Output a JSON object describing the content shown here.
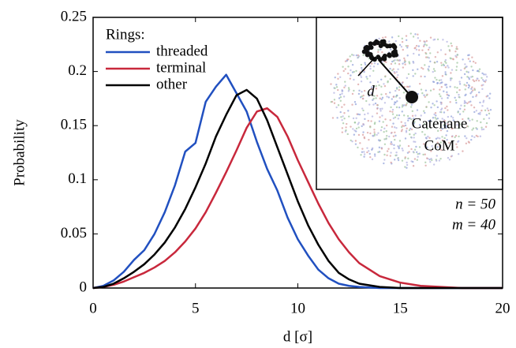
{
  "chart_data": {
    "type": "line",
    "x": [
      0,
      0.5,
      1,
      1.5,
      2,
      2.5,
      3,
      3.5,
      4,
      4.5,
      5,
      5.5,
      6,
      6.5,
      7,
      7.5,
      8,
      8.5,
      9,
      9.5,
      10,
      10.5,
      11,
      11.5,
      12,
      12.5,
      13,
      14,
      15,
      16,
      17,
      18,
      19,
      20
    ],
    "series": [
      {
        "name": "threaded",
        "color": "#2150c0",
        "values": [
          0,
          0.002,
          0.007,
          0.015,
          0.026,
          0.035,
          0.05,
          0.07,
          0.095,
          0.126,
          0.134,
          0.172,
          0.186,
          0.197,
          0.18,
          0.163,
          0.135,
          0.11,
          0.09,
          0.065,
          0.045,
          0.03,
          0.017,
          0.009,
          0.004,
          0.002,
          0.001,
          0,
          0,
          0,
          0,
          0,
          0,
          0
        ]
      },
      {
        "name": "terminal",
        "color": "#c8283c",
        "values": [
          0,
          0.001,
          0.003,
          0.006,
          0.01,
          0.014,
          0.019,
          0.025,
          0.033,
          0.043,
          0.055,
          0.07,
          0.088,
          0.107,
          0.127,
          0.148,
          0.163,
          0.166,
          0.158,
          0.14,
          0.118,
          0.098,
          0.078,
          0.06,
          0.045,
          0.033,
          0.023,
          0.011,
          0.005,
          0.002,
          0.001,
          0,
          0,
          0
        ]
      },
      {
        "name": "other",
        "color": "#000000",
        "values": [
          0,
          0.001,
          0.004,
          0.009,
          0.015,
          0.022,
          0.031,
          0.042,
          0.056,
          0.073,
          0.093,
          0.115,
          0.14,
          0.16,
          0.178,
          0.183,
          0.175,
          0.155,
          0.13,
          0.105,
          0.08,
          0.058,
          0.04,
          0.025,
          0.014,
          0.008,
          0.004,
          0.001,
          0,
          0,
          0,
          0,
          0,
          0
        ]
      }
    ],
    "legend_title": "Rings:",
    "x_label": "d [σ]",
    "y_label": "Probability",
    "xlim": [
      0,
      20
    ],
    "xticks": [
      0,
      5,
      10,
      15,
      20
    ],
    "ylim": [
      0,
      0.25
    ],
    "yticks": [
      0,
      0.05,
      0.1,
      0.15,
      0.2,
      0.25
    ],
    "annotations": [
      "n = 50",
      "m = 40"
    ],
    "inset_labels": [
      "d",
      "Catenane",
      "CoM"
    ]
  }
}
